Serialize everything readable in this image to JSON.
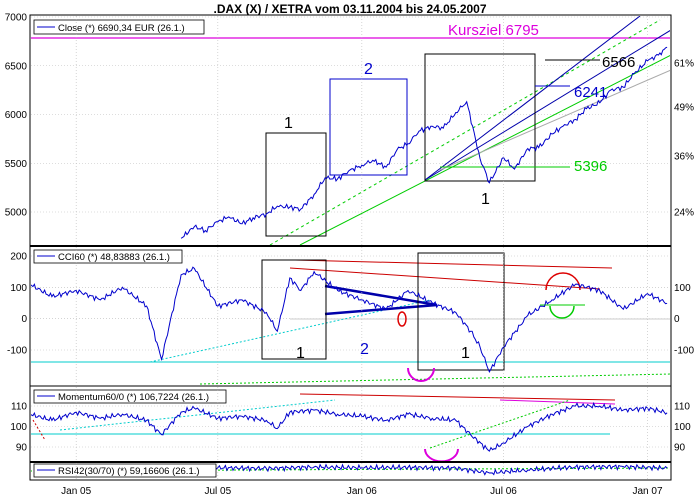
{
  "title": ".DAX (X) / XETRA vom 03.11.2004 bis 24.05.2007",
  "x_ticks": [
    "Jan 05",
    "Jul 05",
    "Jan 06",
    "Jul 06",
    "Jan 07"
  ],
  "colors": {
    "price": "#0000cc",
    "kursziel": "#dd00dd",
    "level_6566": "#000000",
    "level_6241": "#0000cc",
    "level_5396": "#00cc00",
    "channel_green": "#00cc00",
    "channel_blue": "#0000aa",
    "resistance": "#cc0000",
    "support_cyan": "#00cccc",
    "box": "#000000",
    "circle_red": "#dd0000",
    "circle_green": "#00cc00",
    "circle_magenta": "#dd00dd"
  },
  "chart_data": [
    {
      "type": "line",
      "panel": "price",
      "legend": "Close (*) 6690,34 EUR (26.1.)",
      "y_ticks": [
        "7000",
        "6500",
        "6000",
        "5500",
        "5000"
      ],
      "y_ticks_right": [
        "61%",
        "49%",
        "36%",
        "24%"
      ],
      "series": [
        {
          "name": "Close",
          "x": [
            "2005-05-15",
            "2005-06-01",
            "2005-06-15",
            "2005-07-01",
            "2005-07-15",
            "2005-08-01",
            "2005-08-15",
            "2005-09-01",
            "2005-09-15",
            "2005-10-01",
            "2005-10-15",
            "2005-11-01",
            "2005-11-15",
            "2005-12-01",
            "2005-12-15",
            "2006-01-01",
            "2006-01-15",
            "2006-02-01",
            "2006-02-15",
            "2006-03-01",
            "2006-03-15",
            "2006-04-01",
            "2006-04-15",
            "2006-05-01",
            "2006-05-15",
            "2006-06-01",
            "2006-06-13",
            "2006-07-01",
            "2006-07-15",
            "2006-08-01",
            "2006-08-15",
            "2006-09-01",
            "2006-09-15",
            "2006-10-01",
            "2006-10-15",
            "2006-11-01",
            "2006-11-15",
            "2006-12-01",
            "2006-12-15",
            "2007-01-01",
            "2007-01-15",
            "2007-01-26"
          ],
          "values": [
            4730,
            4850,
            4810,
            4900,
            4950,
            4880,
            4940,
            4980,
            5060,
            5050,
            5030,
            5180,
            5350,
            5340,
            5420,
            5480,
            5530,
            5460,
            5640,
            5700,
            5830,
            5880,
            5860,
            6020,
            6130,
            5550,
            5300,
            5560,
            5440,
            5650,
            5660,
            5800,
            5880,
            5950,
            6060,
            6120,
            6250,
            6280,
            6420,
            6550,
            6610,
            6690
          ]
        }
      ],
      "annotations": [
        {
          "label": "Kursziel  6795",
          "value": 6795
        },
        {
          "label": "6566",
          "value": 6566
        },
        {
          "label": "6241",
          "value": 6241
        },
        {
          "label": "5396",
          "value": 5396
        },
        {
          "label": "1"
        },
        {
          "label": "2"
        },
        {
          "label": "1"
        }
      ]
    },
    {
      "type": "line",
      "panel": "cci",
      "legend": "CCI60 (*) 48,83883 (26.1.)",
      "y_ticks": [
        "200",
        "100",
        "0",
        "-100"
      ],
      "y_ticks_right": [
        "100",
        "0",
        "-100"
      ],
      "series": [
        {
          "name": "CCI60",
          "x": [
            "2004-11-03",
            "2004-12-01",
            "2005-01-01",
            "2005-02-01",
            "2005-03-01",
            "2005-04-01",
            "2005-04-20",
            "2005-05-15",
            "2005-06-01",
            "2005-07-01",
            "2005-08-01",
            "2005-09-01",
            "2005-09-15",
            "2005-10-01",
            "2005-10-15",
            "2005-11-01",
            "2005-12-01",
            "2006-01-01",
            "2006-02-01",
            "2006-03-01",
            "2006-04-01",
            "2006-05-01",
            "2006-05-20",
            "2006-06-01",
            "2006-06-13",
            "2006-07-01",
            "2006-08-01",
            "2006-09-01",
            "2006-10-01",
            "2006-11-01",
            "2006-12-01",
            "2007-01-01",
            "2007-01-26"
          ],
          "values": [
            110,
            70,
            90,
            60,
            100,
            40,
            -130,
            140,
            160,
            40,
            60,
            20,
            -40,
            130,
            90,
            150,
            90,
            60,
            30,
            90,
            50,
            20,
            -40,
            -90,
            -170,
            -90,
            10,
            60,
            110,
            90,
            30,
            80,
            49
          ]
        }
      ],
      "annotations": [
        {
          "label": "1"
        },
        {
          "label": "2"
        },
        {
          "label": "1"
        }
      ]
    },
    {
      "type": "line",
      "panel": "momentum",
      "legend": "Momentum60/0 (*) 106,7224 (26.1.)",
      "y_ticks": [
        "110",
        "100",
        "90"
      ],
      "y_ticks_right": [
        "110",
        "100",
        "90"
      ],
      "series": [
        {
          "name": "Momentum60/0",
          "x": [
            "2004-11-03",
            "2004-12-01",
            "2005-01-01",
            "2005-02-01",
            "2005-03-01",
            "2005-04-01",
            "2005-04-20",
            "2005-05-15",
            "2005-06-01",
            "2005-07-01",
            "2005-08-01",
            "2005-09-01",
            "2005-09-15",
            "2005-10-01",
            "2005-11-01",
            "2005-12-01",
            "2006-01-01",
            "2006-02-01",
            "2006-03-01",
            "2006-04-01",
            "2006-05-01",
            "2006-05-20",
            "2006-06-13",
            "2006-07-01",
            "2006-08-01",
            "2006-09-01",
            "2006-10-01",
            "2006-11-01",
            "2006-12-01",
            "2007-01-01",
            "2007-01-26"
          ],
          "values": [
            106,
            103,
            107,
            104,
            106,
            103,
            96,
            107,
            109,
            104,
            105,
            103,
            99,
            107,
            108,
            106,
            105,
            103,
            106,
            104,
            103,
            96,
            88,
            92,
            100,
            106,
            110,
            110,
            108,
            109,
            106.7
          ]
        }
      ]
    },
    {
      "type": "line",
      "panel": "rsi",
      "legend": "RSI42(30/70) (*) 59,16606 (26.1.)",
      "series": [
        {
          "name": "RSI42",
          "x": [
            "2005-05-15",
            "2005-07-01",
            "2005-09-01",
            "2005-11-01",
            "2006-01-01",
            "2006-03-01",
            "2006-05-01",
            "2006-06-13",
            "2006-08-01",
            "2006-10-01",
            "2006-12-01",
            "2007-01-26"
          ],
          "values": [
            56,
            60,
            58,
            62,
            60,
            61,
            59,
            46,
            54,
            62,
            63,
            59
          ]
        }
      ]
    }
  ]
}
